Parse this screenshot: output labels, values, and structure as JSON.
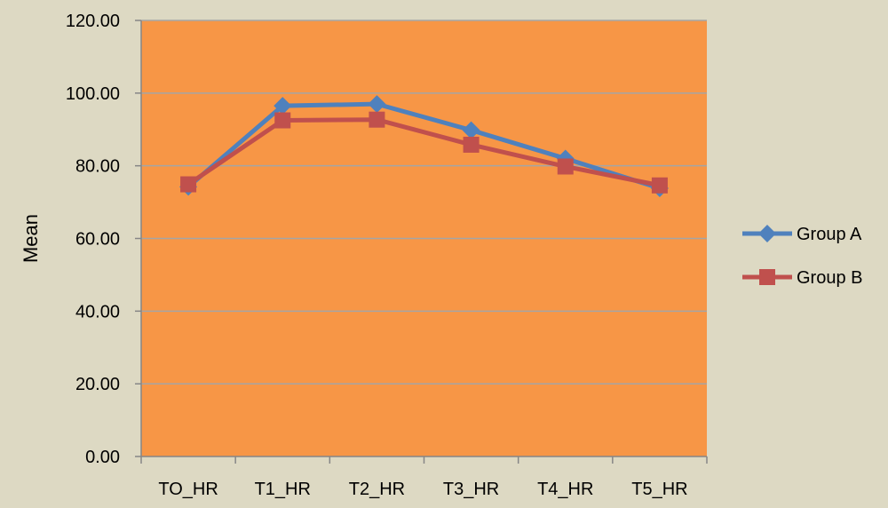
{
  "chart_data": {
    "type": "line",
    "categories": [
      "TO_HR",
      "T1_HR",
      "T2_HR",
      "T3_HR",
      "T4_HR",
      "T5_HR"
    ],
    "series": [
      {
        "name": "Group A",
        "values": [
          74.2,
          96.5,
          97.0,
          89.8,
          82.0,
          73.8
        ],
        "color": "#4f81bd",
        "marker": "diamond"
      },
      {
        "name": "Group B",
        "values": [
          74.9,
          92.5,
          92.7,
          85.8,
          79.8,
          74.6
        ],
        "color": "#c0504d",
        "marker": "square"
      }
    ],
    "ylabel": "Mean",
    "ylim": [
      0,
      120
    ],
    "yticks": [
      "0.00",
      "20.00",
      "40.00",
      "60.00",
      "80.00",
      "100.00",
      "120.00"
    ],
    "grid": true,
    "legend_position": "right",
    "plot_background": "#f79646",
    "page_background": "#ddd9c3",
    "gridline_color": "#a5a5a5"
  }
}
